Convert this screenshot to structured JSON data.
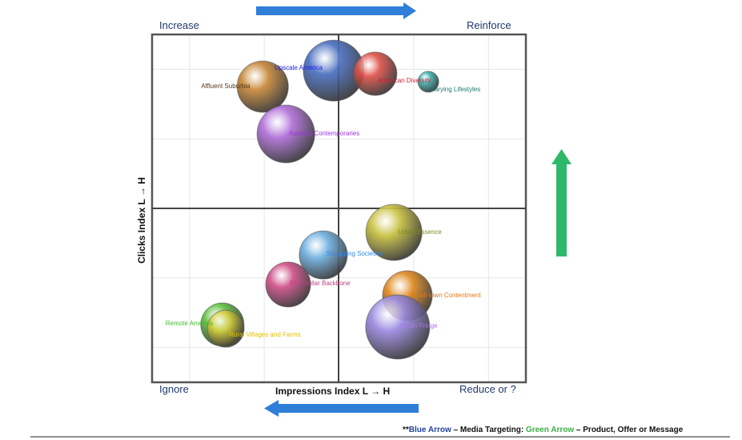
{
  "chart_data": {
    "type": "bubble",
    "xlabel": "Impressions Index L → H",
    "ylabel": "Clicks Index L → H",
    "xlim": [
      0,
      100
    ],
    "ylim": [
      0,
      100
    ],
    "grid": true,
    "quadrant_lines": {
      "x": 50,
      "y": 50
    },
    "quadrants": {
      "top_left": "Increase",
      "top_right": "Reinforce",
      "bottom_left": "Ignore",
      "bottom_right": "Reduce or ?"
    },
    "series": [
      {
        "name": "Upscale America",
        "x": 48.6,
        "y": 89.6,
        "size": 38,
        "color": "#4a6fc0",
        "label_color": "#2222ee"
      },
      {
        "name": "American Diversity",
        "x": 59.7,
        "y": 88.7,
        "size": 27,
        "color": "#e0524a",
        "label_color": "#cc2233"
      },
      {
        "name": "Varying Lifestyles",
        "x": 73.9,
        "y": 86.4,
        "size": 13,
        "color": "#40b0b0",
        "label_color": "#1a7a70"
      },
      {
        "name": "Affluent Suburbia",
        "x": 29.6,
        "y": 85.0,
        "size": 32,
        "color": "#c8883a",
        "label_color": "#5a3a1a"
      },
      {
        "name": "Aspiring Contemporaries",
        "x": 35.8,
        "y": 71.4,
        "size": 36,
        "color": "#b070d8",
        "label_color": "#9933dd"
      },
      {
        "name": "Urban Essence",
        "x": 64.7,
        "y": 43.1,
        "size": 35,
        "color": "#c8c040",
        "label_color": "#7a8a20"
      },
      {
        "name": "Struggling Societies",
        "x": 45.8,
        "y": 36.6,
        "size": 30,
        "color": "#70b0e0",
        "label_color": "#3388ee"
      },
      {
        "name": "Blue-collar Backbone",
        "x": 36.4,
        "y": 28.1,
        "size": 28,
        "color": "#d0508a",
        "label_color": "#c04080"
      },
      {
        "name": "Small-town Contentment",
        "x": 68.3,
        "y": 24.9,
        "size": 31,
        "color": "#e08a20",
        "label_color": "#dd7711"
      },
      {
        "name": "Urban Fringe",
        "x": 65.7,
        "y": 15.9,
        "size": 40,
        "color": "#9a8ae0",
        "label_color": "#aa77ee"
      },
      {
        "name": "Remote America",
        "x": 18.8,
        "y": 16.6,
        "size": 27,
        "color": "#60c040",
        "label_color": "#44bb33"
      },
      {
        "name": "Rural Villages and Farms",
        "x": 19.7,
        "y": 15.4,
        "size": 23,
        "color": "#d8d040",
        "label_color": "#e0c000"
      }
    ]
  },
  "arrows": {
    "media_targeting_color": "#2f7ed8",
    "product_color": "#2eb86a"
  },
  "footnote": {
    "prefix": "**",
    "blue": "Blue Arrow",
    "mid": " – Media Targeting: ",
    "green": "Green Arrow",
    "end": " – Product,  Offer or Message"
  }
}
